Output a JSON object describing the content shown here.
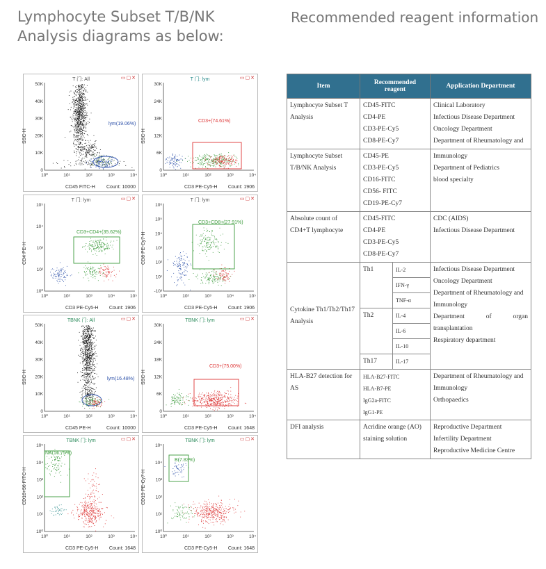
{
  "left_heading": "Lymphocyte Subset T/B/NK Analysis diagrams as below:",
  "right_heading": "Recommended reagent information",
  "icons": {
    "window_controls": "minimize-restore-close-icons"
  },
  "plots": [
    {
      "title": "T 门: All",
      "title_color": "#555",
      "ylabel": "SSC-H",
      "xlabel": "CD45 FITC-H",
      "count": "Count: 10000",
      "gate": "lym(19.06%)",
      "gate_color": "#2b4fa8",
      "yticks": [
        "50K",
        "40K",
        "30K",
        "20K",
        "10K",
        "0"
      ],
      "xticks": [
        "10⁰",
        "10¹",
        "10²",
        "10³",
        "10⁴"
      ]
    },
    {
      "title": "T 门: lym",
      "title_color": "#2a8a8a",
      "ylabel": "SSC-H",
      "xlabel": "CD3 PE-Cy5-H",
      "count": "Count: 1906",
      "gate": "CD3+(74.61%)",
      "gate_color": "#d33",
      "yticks": [
        "30K",
        "24K",
        "18K",
        "12K",
        "6K",
        "0"
      ],
      "xticks": [
        "10⁰",
        "10¹",
        "10²",
        "10³",
        "10⁴"
      ]
    },
    {
      "title": "T 门: lym",
      "title_color": "#555",
      "ylabel": "CD4 PE-H",
      "xlabel": "CD3 PE-Cy5-H",
      "count": "Count: 1906",
      "gate": "CD3+CD4+(35.62%)",
      "gate_color": "#3a9a3a",
      "yticks": [
        "10⁵",
        "10⁴",
        "10³",
        "10²",
        "10⁰"
      ],
      "xticks": [
        "10⁰",
        "10²",
        "10³",
        "10⁴",
        "10⁵"
      ]
    },
    {
      "title": "T 门: lym",
      "title_color": "#555",
      "ylabel": "CD8 PE-Cy7-H",
      "xlabel": "CD3 PE-Cy5-H",
      "count": "Count: 1906",
      "gate": "CD3+CD8+(27.91%)",
      "gate_color": "#3a9a3a",
      "yticks": [
        "10⁶",
        "10⁵",
        "10⁴",
        "10³",
        "10²",
        "10¹",
        "-10³"
      ],
      "xticks": [
        "10⁰",
        "10²",
        "10³",
        "10⁴",
        "10⁵"
      ]
    },
    {
      "title": "TBNK 门: All",
      "title_color": "#2a8a5a",
      "ylabel": "SSC-H",
      "xlabel": "CD45 PE-H",
      "count": "Count: 10000",
      "gate": "lym(16.48%)",
      "gate_color": "#2b4fa8",
      "yticks": [
        "50K",
        "40K",
        "30K",
        "20K",
        "10K",
        "0"
      ],
      "xticks": [
        "10⁰",
        "10¹",
        "10²",
        "10³",
        "10⁴"
      ]
    },
    {
      "title": "TBNK 门: lym",
      "title_color": "#2a8a5a",
      "ylabel": "SSC-H",
      "xlabel": "CD3 PE-Cy5-H",
      "count": "Count: 1648",
      "gate": "CD3+(75.00%)",
      "gate_color": "#d33",
      "yticks": [
        "30K",
        "24K",
        "18K",
        "12K",
        "6K",
        "0"
      ],
      "xticks": [
        "10⁰",
        "10¹",
        "10²",
        "10³",
        "10⁴"
      ]
    },
    {
      "title": "TBNK 门: lym",
      "title_color": "#2a8a5a",
      "ylabel": "CD16+56 FITC-H",
      "xlabel": "CD3 PE-Cy5-H",
      "count": "Count: 1648",
      "gate": "NK(16.75%)",
      "gate_color": "#3a9a3a",
      "yticks": [
        "10⁵",
        "10⁴",
        "10³",
        "10²",
        "10¹",
        "10⁰"
      ],
      "xticks": [
        "10⁰",
        "10¹",
        "10²",
        "10³",
        "10⁴"
      ]
    },
    {
      "title": "TBNK 门: lym",
      "title_color": "#2a8a5a",
      "ylabel": "CD19 PE-Cy7-H",
      "xlabel": "CD3 PE-Cy5-H",
      "count": "Count: 1648",
      "gate": "B(7.83%)",
      "gate_color": "#3a9a3a",
      "yticks": [
        "10⁵",
        "10⁴",
        "10³",
        "10²",
        "10¹",
        "10⁰"
      ],
      "xticks": [
        "10⁰",
        "10¹",
        "10²",
        "10³",
        "10⁴"
      ]
    }
  ],
  "table": {
    "headers": [
      "Item",
      "Recommended reagent",
      "Application Department"
    ],
    "rows": [
      {
        "item": "Lymphocyte Subset T Analysis",
        "reagents": [
          "CD45-FITC",
          "CD4-PE",
          "CD3-PE-Cy5",
          "CD8-PE-Cy7"
        ],
        "depts": [
          "Clinical Laboratory",
          "Infectious Disease Department",
          "Oncology Department",
          "Department of Rheumatology and"
        ]
      },
      {
        "item": "Lymphocyte Subset T/B/NK Analysis",
        "reagents": [
          "CD45-PE",
          "CD3-PE-Cy5",
          "CD16-FITC",
          "CD56- FITC",
          "CD19-PE-Cy7"
        ],
        "depts": [
          "Immunology",
          "Department of Pediatrics",
          "blood specialty"
        ]
      },
      {
        "item": "Absolute count of CD4+T lymphocyte",
        "reagents": [
          "CD45-FITC",
          "CD4-PE",
          "CD3-PE-Cy5",
          "CD8-PE-Cy7"
        ],
        "depts": [
          "CDC (AIDS)",
          "Infectious Disease Department"
        ]
      },
      {
        "item": "Cytokine Th1/Th2/Th17 Analysis",
        "groups": [
          {
            "name": "Th1",
            "cytokines": [
              "IL-2",
              "IFN-γ",
              "TNF-α"
            ]
          },
          {
            "name": "Th2",
            "cytokines": [
              "IL-4",
              "IL-6",
              "IL-10"
            ]
          },
          {
            "name": "Th17",
            "cytokines": [
              "IL-17"
            ]
          }
        ],
        "depts": [
          "Infectious Disease Department",
          "Oncology Department",
          "Department of Rheumatology and",
          "Immunology",
          "Department of organ",
          "transplantation",
          "Respiratory department"
        ]
      },
      {
        "item": "HLA-B27 detection for AS",
        "reagents": [
          "HLA-B27-FITC",
          "HLA-B7-PE",
          "IgG2a-FITC",
          "IgG1-PE"
        ],
        "depts": [
          "Department of Rheumatology and",
          "Immunology",
          "Orthopaedics"
        ]
      },
      {
        "item": "DFI analysis",
        "reagents": [
          "Acridine orange (AO) staining solution"
        ],
        "depts": [
          "Reproductive Department",
          "Infertility Department",
          "Reproductive Medicine Centre"
        ]
      }
    ]
  }
}
